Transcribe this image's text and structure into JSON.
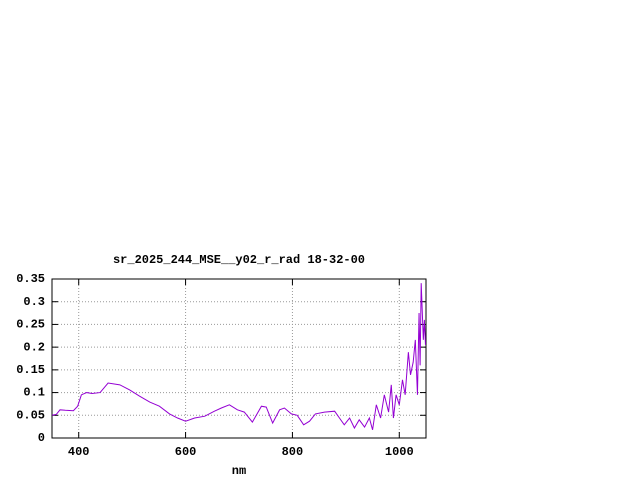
{
  "chart_data": {
    "type": "line",
    "title": "sr_2025_244_MSE__y02_r_rad 18-32-00",
    "x_label": "nm",
    "xlim": [
      350,
      1050
    ],
    "xticks": [
      400,
      600,
      800,
      1000
    ],
    "ylim": [
      0,
      0.35
    ],
    "yticks": [
      0,
      0.05,
      0.1,
      0.15,
      0.2,
      0.25,
      0.3,
      0.35
    ],
    "grid": true,
    "series": [
      {
        "color": "#9400d3",
        "x": [
          350,
          358,
          365,
          375,
          390,
          398,
          405,
          415,
          425,
          440,
          455,
          477,
          495,
          514,
          533,
          551,
          570,
          585,
          600,
          617,
          636,
          654,
          667,
          682,
          697,
          710,
          725,
          742,
          751,
          763,
          776,
          785,
          798,
          809,
          821,
          832,
          843,
          860,
          879,
          888,
          897,
          907,
          916,
          925,
          935,
          944,
          950,
          957,
          965,
          972,
          980,
          985,
          989,
          994,
          1000,
          1006,
          1011,
          1017,
          1021,
          1026,
          1030,
          1034,
          1037,
          1039,
          1041,
          1045,
          1047,
          1049
        ],
        "values": [
          0.05,
          0.052,
          0.062,
          0.061,
          0.06,
          0.07,
          0.095,
          0.1,
          0.098,
          0.1,
          0.121,
          0.117,
          0.106,
          0.092,
          0.079,
          0.07,
          0.053,
          0.044,
          0.037,
          0.044,
          0.048,
          0.059,
          0.066,
          0.073,
          0.062,
          0.057,
          0.035,
          0.07,
          0.068,
          0.033,
          0.062,
          0.066,
          0.053,
          0.05,
          0.029,
          0.037,
          0.053,
          0.057,
          0.059,
          0.044,
          0.029,
          0.044,
          0.022,
          0.04,
          0.024,
          0.044,
          0.018,
          0.073,
          0.044,
          0.095,
          0.057,
          0.117,
          0.044,
          0.095,
          0.073,
          0.128,
          0.095,
          0.189,
          0.139,
          0.167,
          0.216,
          0.095,
          0.275,
          0.16,
          0.341,
          0.216,
          0.26,
          0.205
        ]
      }
    ]
  }
}
